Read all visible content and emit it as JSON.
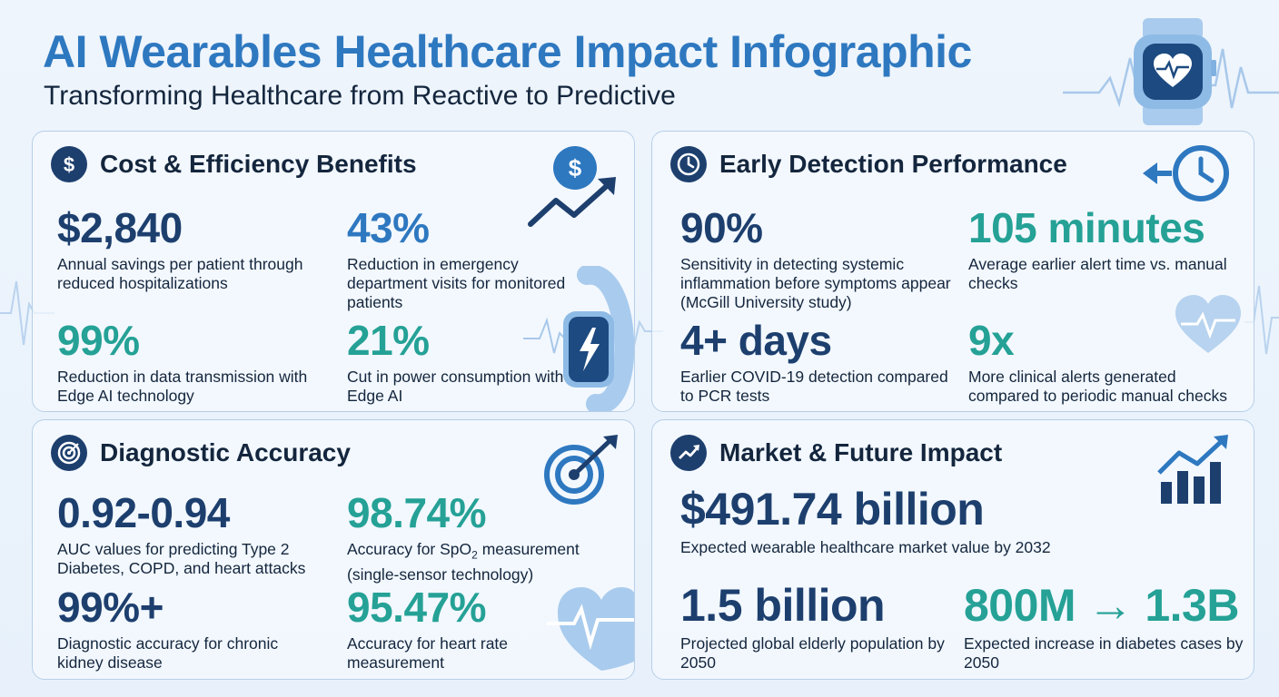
{
  "header": {
    "title": "AI Wearables Healthcare Impact Infographic",
    "subtitle": "Transforming Healthcare from Reactive to Predictive"
  },
  "icons": {
    "header_illustration": "smartwatch-heart-icon",
    "cost_header": "dollar-icon",
    "detection_header": "clock-icon",
    "accuracy_header": "target-icon",
    "market_header": "trend-up-icon"
  },
  "colors": {
    "title_blue": "#2e78c0",
    "navy": "#1d3f6e",
    "teal": "#25a196",
    "panel_border": "#b7cfe8"
  },
  "cost": {
    "title": "Cost & Efficiency Benefits",
    "stats": [
      {
        "value": "$2,840",
        "desc": "Annual savings per patient through reduced hospitalizations"
      },
      {
        "value": "43%",
        "desc": "Reduction in emergency department visits for monitored patients"
      },
      {
        "value": "99%",
        "desc": "Reduction in data transmission with Edge AI technology"
      },
      {
        "value": "21%",
        "desc": "Cut in power consumption with Edge AI"
      }
    ]
  },
  "detection": {
    "title": "Early Detection Performance",
    "stats": [
      {
        "value": "90%",
        "desc": "Sensitivity in detecting systemic inflammation before symptoms appear (McGill University study)"
      },
      {
        "value": "105 minutes",
        "desc": "Average earlier alert time vs. manual checks"
      },
      {
        "value": "4+ days",
        "desc": "Earlier COVID-19 detection compared to PCR tests"
      },
      {
        "value": "9x",
        "desc": "More clinical alerts generated compared to periodic manual checks"
      }
    ]
  },
  "accuracy": {
    "title": "Diagnostic Accuracy",
    "stats": [
      {
        "value": "0.92-0.94",
        "desc": "AUC values for predicting Type 2 Diabetes, COPD, and heart attacks"
      },
      {
        "value": "98.74%",
        "desc_pre": "Accuracy for SpO",
        "desc_sub": "2",
        "desc_post": " measurement (single-sensor technology)"
      },
      {
        "value": "99%+",
        "desc": "Diagnostic accuracy for chronic kidney disease"
      },
      {
        "value": "95.47%",
        "desc": "Accuracy for heart rate measurement"
      }
    ]
  },
  "market": {
    "title": "Market & Future Impact",
    "stats": [
      {
        "value": "$491.74 billion",
        "desc": "Expected wearable healthcare market value by 2032"
      },
      {
        "value": "1.5 billion",
        "desc": "Projected global elderly population by 2050"
      },
      {
        "value": "800M → 1.3B",
        "desc": "Expected increase in diabetes cases by 2050"
      }
    ]
  }
}
